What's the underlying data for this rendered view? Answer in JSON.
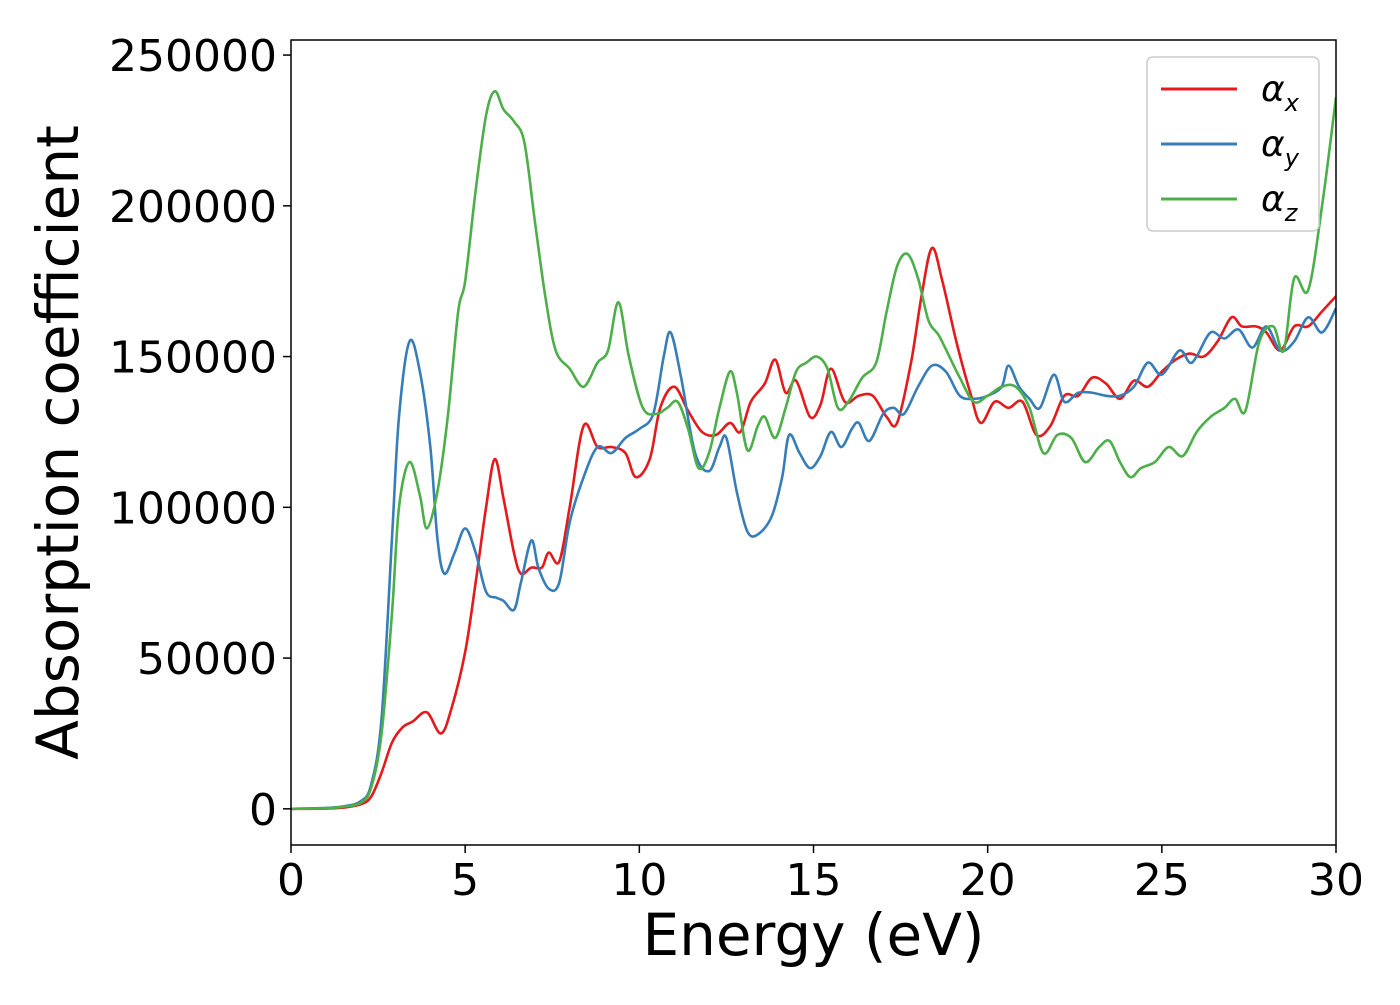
{
  "chart_data": {
    "type": "line",
    "title": "",
    "xlabel": "Energy (eV)",
    "ylabel": "Absorption coefficient",
    "xlim": [
      0,
      30
    ],
    "ylim": [
      -12000,
      255000
    ],
    "x_ticks": [
      0,
      5,
      10,
      15,
      20,
      25,
      30
    ],
    "y_ticks": [
      0,
      50000,
      100000,
      150000,
      200000,
      250000
    ],
    "grid": false,
    "legend_position": "top-right",
    "series": [
      {
        "name": "αx",
        "symbol": "α",
        "subscript": "x",
        "color": "#e41a1c",
        "points": [
          [
            0,
            0
          ],
          [
            1,
            100
          ],
          [
            1.5,
            400
          ],
          [
            2,
            1500
          ],
          [
            2.3,
            4000
          ],
          [
            2.6,
            12000
          ],
          [
            2.9,
            22000
          ],
          [
            3.2,
            27000
          ],
          [
            3.5,
            29000
          ],
          [
            3.9,
            32000
          ],
          [
            4.3,
            25000
          ],
          [
            4.6,
            33000
          ],
          [
            5,
            52000
          ],
          [
            5.3,
            75000
          ],
          [
            5.6,
            100000
          ],
          [
            5.85,
            116000
          ],
          [
            6.1,
            103000
          ],
          [
            6.4,
            85000
          ],
          [
            6.6,
            78000
          ],
          [
            6.9,
            80000
          ],
          [
            7.2,
            80000
          ],
          [
            7.4,
            85000
          ],
          [
            7.7,
            82000
          ],
          [
            8,
            100000
          ],
          [
            8.4,
            127000
          ],
          [
            8.8,
            120000
          ],
          [
            9.2,
            120000
          ],
          [
            9.6,
            118000
          ],
          [
            9.9,
            110000
          ],
          [
            10.3,
            116000
          ],
          [
            10.6,
            133000
          ],
          [
            11,
            140000
          ],
          [
            11.4,
            132000
          ],
          [
            11.8,
            125000
          ],
          [
            12.2,
            124000
          ],
          [
            12.6,
            128000
          ],
          [
            12.9,
            125000
          ],
          [
            13.2,
            135000
          ],
          [
            13.6,
            141000
          ],
          [
            13.9,
            149000
          ],
          [
            14.2,
            138000
          ],
          [
            14.5,
            142000
          ],
          [
            14.9,
            130000
          ],
          [
            15.2,
            134000
          ],
          [
            15.5,
            146000
          ],
          [
            15.9,
            135000
          ],
          [
            16.3,
            137000
          ],
          [
            16.7,
            137000
          ],
          [
            17.1,
            130000
          ],
          [
            17.4,
            128000
          ],
          [
            17.8,
            148000
          ],
          [
            18.1,
            170000
          ],
          [
            18.4,
            186000
          ],
          [
            18.7,
            175000
          ],
          [
            19.1,
            155000
          ],
          [
            19.5,
            138000
          ],
          [
            19.8,
            128000
          ],
          [
            20.2,
            135000
          ],
          [
            20.6,
            133000
          ],
          [
            21,
            135000
          ],
          [
            21.4,
            124000
          ],
          [
            21.8,
            127000
          ],
          [
            22.2,
            137000
          ],
          [
            22.6,
            137000
          ],
          [
            23,
            143000
          ],
          [
            23.4,
            141000
          ],
          [
            23.8,
            136000
          ],
          [
            24.2,
            142000
          ],
          [
            24.6,
            140000
          ],
          [
            25,
            145000
          ],
          [
            25.4,
            149000
          ],
          [
            25.8,
            151000
          ],
          [
            26.2,
            150000
          ],
          [
            26.6,
            155000
          ],
          [
            27,
            163000
          ],
          [
            27.3,
            160000
          ],
          [
            27.7,
            160000
          ],
          [
            28,
            158000
          ],
          [
            28.4,
            152000
          ],
          [
            28.8,
            160000
          ],
          [
            29.2,
            160000
          ],
          [
            29.6,
            165000
          ],
          [
            30,
            170000
          ]
        ]
      },
      {
        "name": "αy",
        "symbol": "α",
        "subscript": "y",
        "color": "#377eb8",
        "points": [
          [
            0,
            0
          ],
          [
            1,
            300
          ],
          [
            1.5,
            800
          ],
          [
            2,
            2500
          ],
          [
            2.3,
            8000
          ],
          [
            2.6,
            30000
          ],
          [
            2.9,
            90000
          ],
          [
            3.1,
            130000
          ],
          [
            3.4,
            155000
          ],
          [
            3.7,
            145000
          ],
          [
            4,
            120000
          ],
          [
            4.2,
            90000
          ],
          [
            4.4,
            78000
          ],
          [
            4.7,
            85000
          ],
          [
            5,
            93000
          ],
          [
            5.3,
            85000
          ],
          [
            5.6,
            72000
          ],
          [
            5.9,
            70000
          ],
          [
            6.1,
            69000
          ],
          [
            6.4,
            66000
          ],
          [
            6.6,
            75000
          ],
          [
            6.9,
            89000
          ],
          [
            7.1,
            80000
          ],
          [
            7.4,
            73000
          ],
          [
            7.7,
            75000
          ],
          [
            8,
            95000
          ],
          [
            8.4,
            110000
          ],
          [
            8.8,
            120000
          ],
          [
            9.2,
            118000
          ],
          [
            9.6,
            123000
          ],
          [
            10,
            126000
          ],
          [
            10.4,
            131000
          ],
          [
            10.7,
            150000
          ],
          [
            10.9,
            158000
          ],
          [
            11.2,
            143000
          ],
          [
            11.6,
            118000
          ],
          [
            12,
            112000
          ],
          [
            12.3,
            120000
          ],
          [
            12.5,
            123000
          ],
          [
            12.8,
            105000
          ],
          [
            13.1,
            92000
          ],
          [
            13.4,
            91000
          ],
          [
            13.8,
            97000
          ],
          [
            14.1,
            110000
          ],
          [
            14.3,
            124000
          ],
          [
            14.6,
            118000
          ],
          [
            14.9,
            113000
          ],
          [
            15.2,
            117000
          ],
          [
            15.5,
            125000
          ],
          [
            15.8,
            120000
          ],
          [
            16.1,
            126000
          ],
          [
            16.3,
            128000
          ],
          [
            16.6,
            122000
          ],
          [
            17,
            131000
          ],
          [
            17.3,
            133000
          ],
          [
            17.6,
            131000
          ],
          [
            18,
            140000
          ],
          [
            18.4,
            147000
          ],
          [
            18.8,
            145000
          ],
          [
            19.2,
            137000
          ],
          [
            19.6,
            136000
          ],
          [
            20,
            137000
          ],
          [
            20.4,
            140000
          ],
          [
            20.6,
            147000
          ],
          [
            20.9,
            140000
          ],
          [
            21.2,
            136000
          ],
          [
            21.5,
            133000
          ],
          [
            21.9,
            144000
          ],
          [
            22.2,
            135000
          ],
          [
            22.6,
            138000
          ],
          [
            23,
            138000
          ],
          [
            23.4,
            137000
          ],
          [
            23.8,
            137000
          ],
          [
            24.2,
            140000
          ],
          [
            24.6,
            148000
          ],
          [
            25,
            144000
          ],
          [
            25.5,
            152000
          ],
          [
            25.8,
            148000
          ],
          [
            26,
            150000
          ],
          [
            26.4,
            158000
          ],
          [
            26.8,
            156000
          ],
          [
            27.2,
            159000
          ],
          [
            27.6,
            153000
          ],
          [
            28,
            160000
          ],
          [
            28.4,
            152000
          ],
          [
            28.8,
            155000
          ],
          [
            29.2,
            163000
          ],
          [
            29.6,
            158000
          ],
          [
            30,
            166000
          ]
        ]
      },
      {
        "name": "αz",
        "symbol": "α",
        "subscript": "z",
        "color": "#4daf4a",
        "points": [
          [
            0,
            0
          ],
          [
            1,
            200
          ],
          [
            1.5,
            700
          ],
          [
            2,
            2000
          ],
          [
            2.3,
            7000
          ],
          [
            2.6,
            25000
          ],
          [
            2.9,
            65000
          ],
          [
            3.1,
            100000
          ],
          [
            3.4,
            115000
          ],
          [
            3.7,
            104000
          ],
          [
            3.9,
            93000
          ],
          [
            4.2,
            105000
          ],
          [
            4.5,
            130000
          ],
          [
            4.8,
            165000
          ],
          [
            5,
            175000
          ],
          [
            5.3,
            205000
          ],
          [
            5.6,
            230000
          ],
          [
            5.85,
            238000
          ],
          [
            6.1,
            232000
          ],
          [
            6.4,
            228000
          ],
          [
            6.7,
            221000
          ],
          [
            7,
            195000
          ],
          [
            7.3,
            170000
          ],
          [
            7.6,
            152000
          ],
          [
            8,
            146000
          ],
          [
            8.4,
            140000
          ],
          [
            8.8,
            148000
          ],
          [
            9.1,
            152000
          ],
          [
            9.4,
            168000
          ],
          [
            9.7,
            150000
          ],
          [
            10.1,
            133000
          ],
          [
            10.5,
            131000
          ],
          [
            10.8,
            133000
          ],
          [
            11.1,
            135000
          ],
          [
            11.4,
            126000
          ],
          [
            11.7,
            113000
          ],
          [
            12,
            118000
          ],
          [
            12.3,
            133000
          ],
          [
            12.6,
            145000
          ],
          [
            12.8,
            138000
          ],
          [
            13.1,
            119000
          ],
          [
            13.4,
            127000
          ],
          [
            13.6,
            130000
          ],
          [
            13.9,
            123000
          ],
          [
            14.2,
            133000
          ],
          [
            14.5,
            145000
          ],
          [
            14.8,
            148000
          ],
          [
            15.1,
            150000
          ],
          [
            15.4,
            146000
          ],
          [
            15.7,
            133000
          ],
          [
            16,
            135000
          ],
          [
            16.4,
            143000
          ],
          [
            16.8,
            148000
          ],
          [
            17.1,
            165000
          ],
          [
            17.4,
            180000
          ],
          [
            17.7,
            184000
          ],
          [
            18,
            176000
          ],
          [
            18.3,
            162000
          ],
          [
            18.6,
            157000
          ],
          [
            18.9,
            150000
          ],
          [
            19.2,
            143000
          ],
          [
            19.6,
            135000
          ],
          [
            20,
            137000
          ],
          [
            20.4,
            140000
          ],
          [
            20.8,
            140000
          ],
          [
            21.2,
            133000
          ],
          [
            21.6,
            118000
          ],
          [
            22,
            124000
          ],
          [
            22.4,
            123000
          ],
          [
            22.8,
            115000
          ],
          [
            23.2,
            120000
          ],
          [
            23.5,
            122000
          ],
          [
            23.8,
            115000
          ],
          [
            24.1,
            110000
          ],
          [
            24.4,
            113000
          ],
          [
            24.8,
            115000
          ],
          [
            25.2,
            120000
          ],
          [
            25.6,
            117000
          ],
          [
            26,
            125000
          ],
          [
            26.4,
            130000
          ],
          [
            26.8,
            133000
          ],
          [
            27.1,
            136000
          ],
          [
            27.4,
            132000
          ],
          [
            27.8,
            155000
          ],
          [
            28.2,
            160000
          ],
          [
            28.5,
            152000
          ],
          [
            28.8,
            176000
          ],
          [
            29.2,
            172000
          ],
          [
            29.6,
            200000
          ],
          [
            30,
            236000
          ]
        ]
      }
    ]
  }
}
